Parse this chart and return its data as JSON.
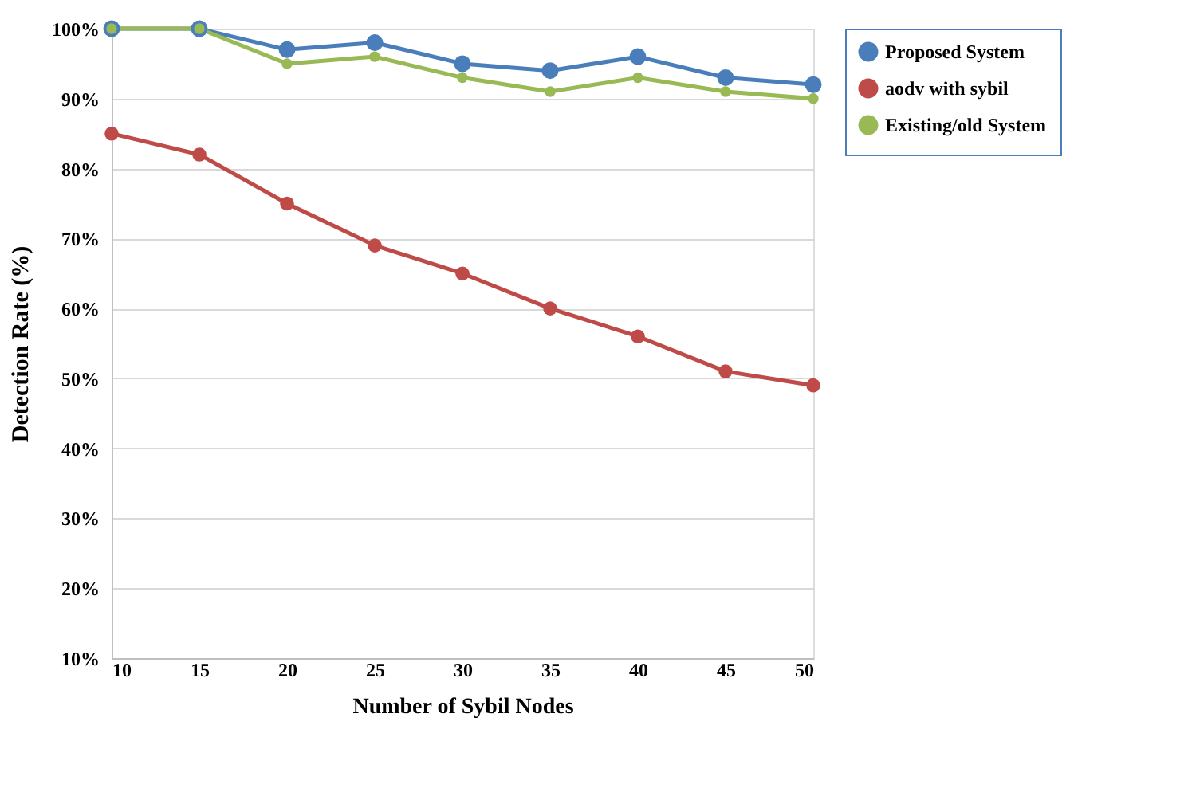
{
  "chart_data": {
    "type": "line",
    "xlabel": "Number of Sybil Nodes",
    "ylabel": "Detection Rate (%)",
    "x": [
      10,
      15,
      20,
      25,
      30,
      35,
      40,
      45,
      50
    ],
    "xlim": [
      10,
      50
    ],
    "xticks": [
      10,
      15,
      20,
      25,
      30,
      35,
      40,
      45,
      50
    ],
    "ylim": [
      10,
      100
    ],
    "yticks": [
      {
        "value": 10,
        "label": "10%"
      },
      {
        "value": 20,
        "label": "20%"
      },
      {
        "value": 30,
        "label": "30%"
      },
      {
        "value": 40,
        "label": "40%"
      },
      {
        "value": 50,
        "label": "50%"
      },
      {
        "value": 60,
        "label": "60%"
      },
      {
        "value": 70,
        "label": "70%"
      },
      {
        "value": 80,
        "label": "80%"
      },
      {
        "value": 90,
        "label": "90%"
      },
      {
        "value": 100,
        "label": "100%"
      }
    ],
    "grid": "y",
    "legend": "right",
    "marker": "circle",
    "line_style": "solid",
    "series": [
      {
        "name": "Proposed System",
        "color": "#4a7ebb",
        "values": [
          100,
          100,
          97,
          98,
          95,
          94,
          96,
          93,
          92
        ]
      },
      {
        "name": "aodv with sybil",
        "color": "#be4b48",
        "values": [
          85,
          82,
          75,
          69,
          65,
          60,
          56,
          51,
          49
        ]
      },
      {
        "name": "Existing/old System",
        "color": "#98b954",
        "values": [
          100,
          100,
          95,
          96,
          93,
          91,
          93,
          91,
          90
        ]
      }
    ]
  }
}
